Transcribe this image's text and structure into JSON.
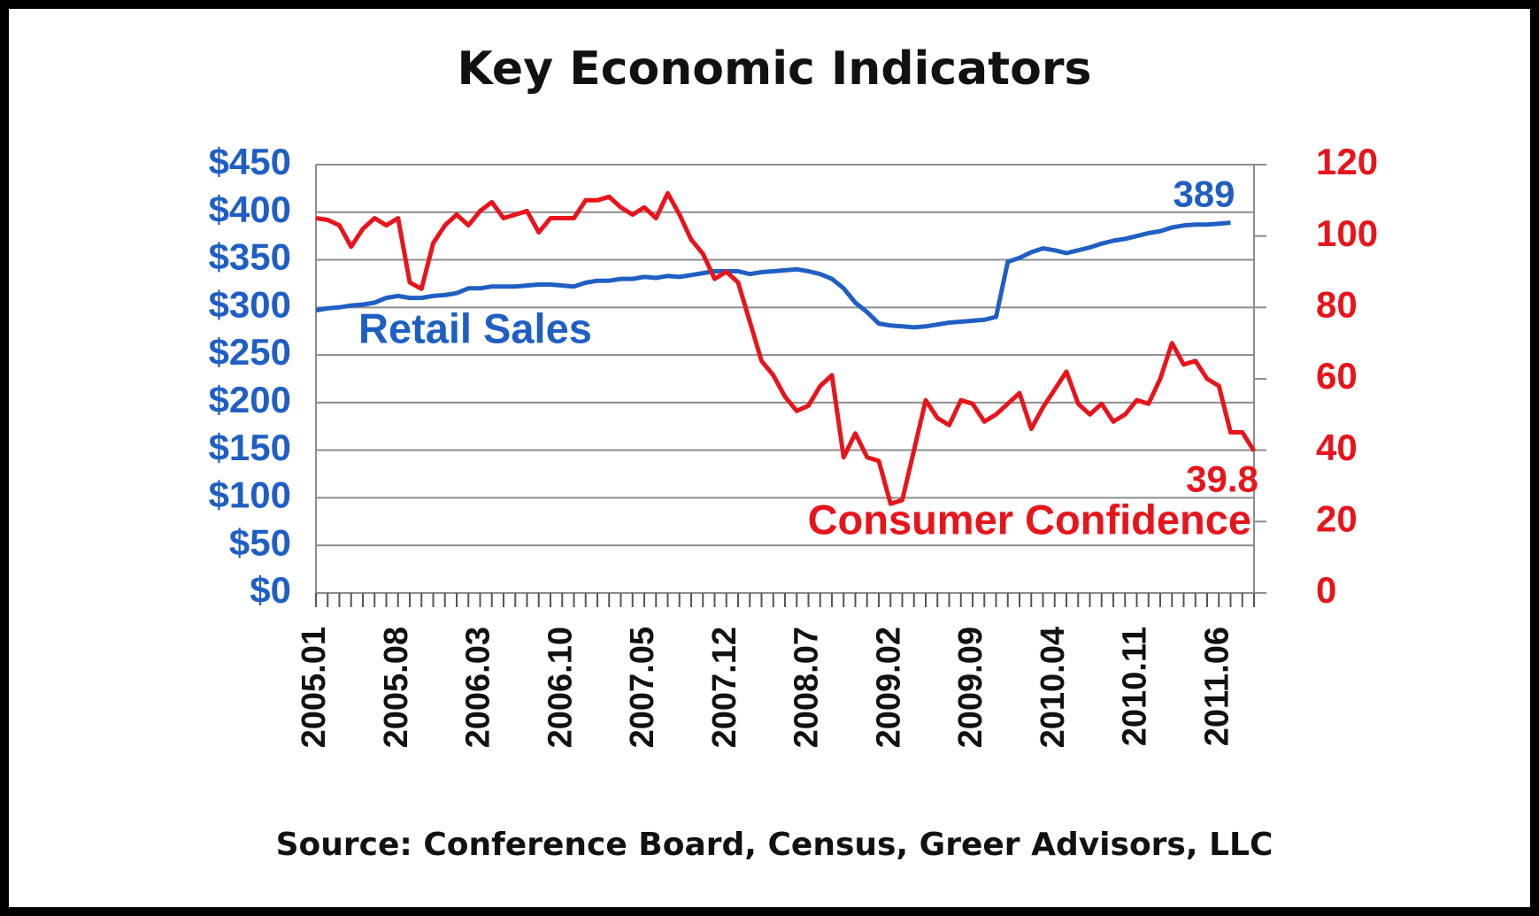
{
  "chart_data": {
    "type": "line",
    "title": "Key Economic Indicators",
    "source": "Source: Conference Board, Census, Greer Advisors, LLC",
    "categories": [
      "2005.01",
      null,
      null,
      null,
      null,
      null,
      null,
      "2005.08",
      null,
      null,
      null,
      null,
      null,
      null,
      "2006.03",
      null,
      null,
      null,
      null,
      null,
      null,
      "2006.10",
      null,
      null,
      null,
      null,
      null,
      null,
      "2007.05",
      null,
      null,
      null,
      null,
      null,
      null,
      "2007.12",
      null,
      null,
      null,
      null,
      null,
      null,
      "2008.07",
      null,
      null,
      null,
      null,
      null,
      null,
      "2009.02",
      null,
      null,
      null,
      null,
      null,
      null,
      "2009.09",
      null,
      null,
      null,
      null,
      null,
      null,
      "2010.04",
      null,
      null,
      null,
      null,
      null,
      null,
      "2010.11",
      null,
      null,
      null,
      null,
      null,
      null,
      "2011.06",
      null,
      null,
      null
    ],
    "series": [
      {
        "name": "Retail Sales",
        "color": "#1f5fc4",
        "axis": "y",
        "values": [
          297,
          299,
          300,
          302,
          303,
          305,
          310,
          312,
          310,
          310,
          312,
          313,
          315,
          320,
          320,
          322,
          322,
          322,
          323,
          324,
          324,
          323,
          322,
          326,
          328,
          328,
          330,
          330,
          332,
          331,
          333,
          332,
          334,
          336,
          338,
          338,
          338,
          335,
          337,
          338,
          339,
          340,
          338,
          335,
          330,
          320,
          305,
          295,
          283,
          281,
          280,
          279,
          280,
          282,
          284,
          285,
          286,
          287,
          290,
          348,
          352,
          358,
          362,
          360,
          357,
          360,
          363,
          367,
          370,
          372,
          375,
          378,
          380,
          384,
          386,
          387,
          387,
          388,
          389,
          null,
          null
        ]
      },
      {
        "name": "Consumer Confidence",
        "color": "#e8141b",
        "axis": "y2",
        "values": [
          105,
          104.5,
          103,
          97,
          102,
          105,
          103,
          105,
          87,
          85.2,
          98,
          103,
          106,
          103,
          107,
          109.5,
          105,
          106,
          107,
          101,
          105,
          105,
          105,
          110,
          110,
          111,
          108,
          106,
          108,
          105,
          112,
          106,
          99,
          95,
          88,
          90,
          87,
          76,
          65,
          61,
          55,
          51,
          52.5,
          58,
          61,
          38,
          44.7,
          38,
          37,
          25,
          26,
          40,
          54,
          49,
          47,
          54,
          53,
          48,
          50,
          53,
          56,
          46,
          52,
          57,
          62,
          53,
          50,
          53,
          48,
          50,
          54,
          53,
          60,
          70,
          64,
          65,
          60,
          58,
          45,
          45,
          39.8
        ]
      }
    ],
    "ylim": [
      0,
      450
    ],
    "yticks": [
      {
        "value": 0,
        "label": "$0"
      },
      {
        "value": 50,
        "label": "$50"
      },
      {
        "value": 100,
        "label": "$100"
      },
      {
        "value": 150,
        "label": "$150"
      },
      {
        "value": 200,
        "label": "$200"
      },
      {
        "value": 250,
        "label": "$250"
      },
      {
        "value": 300,
        "label": "$300"
      },
      {
        "value": 350,
        "label": "$350"
      },
      {
        "value": 400,
        "label": "$400"
      },
      {
        "value": 450,
        "label": "$450"
      }
    ],
    "y2lim": [
      0,
      120
    ],
    "y2ticks": [
      0,
      20,
      40,
      60,
      80,
      100,
      120
    ],
    "grid": true
  }
}
